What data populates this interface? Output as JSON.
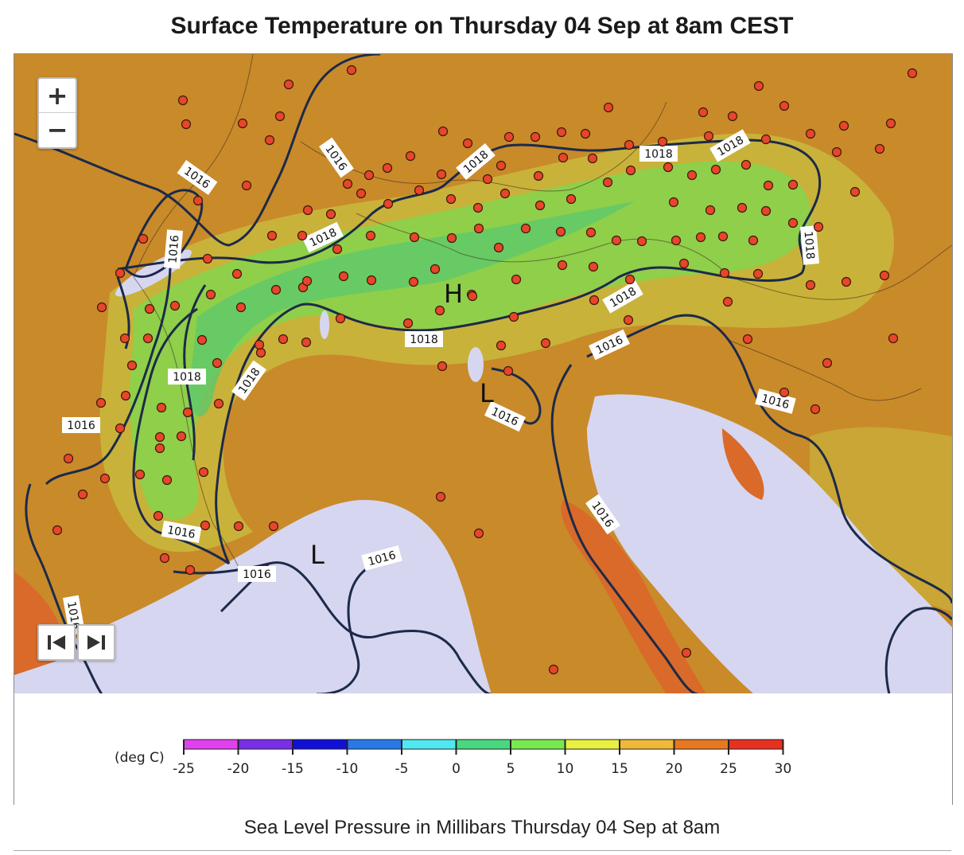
{
  "title": "Surface Temperature on Thursday 04 Sep at 8am CEST",
  "caption": "Sea Level Pressure in Millibars Thursday 04 Sep at 8am",
  "controls": {
    "zoom_in": "+",
    "zoom_out": "−",
    "prev": "first-frame-icon",
    "next": "last-frame-icon"
  },
  "map": {
    "isobar_labels": [
      "1016",
      "1016",
      "1016",
      "1018",
      "1018",
      "1018",
      "1018",
      "1018",
      "1018",
      "1018",
      "1018",
      "1018",
      "1016",
      "1016",
      "1016",
      "1016",
      "1016",
      "1016",
      "1016",
      "1016",
      "1016"
    ],
    "pressure_centers": [
      "H",
      "L",
      "L"
    ]
  },
  "legend": {
    "unit_label": "(deg C)",
    "ticks": [
      "-25",
      "-20",
      "-15",
      "-10",
      "-5",
      "0",
      "5",
      "10",
      "15",
      "20",
      "25",
      "30"
    ],
    "colors": [
      "#e040f0",
      "#7a2ee8",
      "#1010d8",
      "#2878e8",
      "#50e8f0",
      "#48d880",
      "#78e850",
      "#e8f040",
      "#f0b838",
      "#e87820",
      "#e83020"
    ]
  }
}
